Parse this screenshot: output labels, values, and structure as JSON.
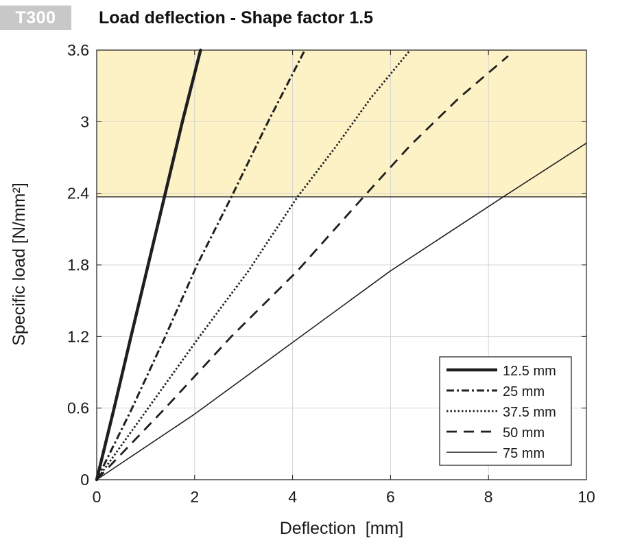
{
  "badge": "T300",
  "chart_data": {
    "type": "line",
    "title": "Load deflection - Shape factor 1.5",
    "xlabel": "Deflection  [mm]",
    "ylabel": "Specific load [N/mm²]",
    "xlim": [
      0,
      10
    ],
    "ylim": [
      0,
      3.6
    ],
    "x_ticks": [
      0,
      2,
      4,
      6,
      8,
      10
    ],
    "y_ticks": [
      0,
      0.6,
      1.2,
      1.8,
      2.4,
      3,
      3.6
    ],
    "x_tick_labels": [
      "0",
      "2",
      "4",
      "6",
      "8",
      "10"
    ],
    "y_tick_labels": [
      "0",
      "0.6",
      "1.2",
      "1.8",
      "2.4",
      "3",
      "3.6"
    ],
    "grid": true,
    "legend_position": "bottom-right",
    "highlight_band": {
      "y_from": 2.37,
      "y_to": 3.6,
      "color": "#fdf2c6"
    },
    "series": [
      {
        "name": "12.5 mm",
        "style": "solid-thick",
        "x": [
          0,
          0.35,
          0.7,
          1.05,
          1.4,
          1.75,
          2.12
        ],
        "y": [
          0,
          0.59,
          1.2,
          1.8,
          2.4,
          3.0,
          3.6
        ]
      },
      {
        "name": "25 mm",
        "style": "dashdot",
        "x": [
          0,
          0.7,
          1.4,
          2.05,
          2.75,
          3.5,
          4.25
        ],
        "y": [
          0,
          0.58,
          1.2,
          1.8,
          2.37,
          3.0,
          3.6
        ]
      },
      {
        "name": "37.5 mm",
        "style": "dotted",
        "x": [
          0,
          1.05,
          2.1,
          3.1,
          4.1,
          4.9,
          5.6,
          6.4
        ],
        "y": [
          0,
          0.6,
          1.2,
          1.75,
          2.37,
          2.8,
          3.2,
          3.6
        ]
      },
      {
        "name": "50 mm",
        "style": "dashed",
        "x": [
          0,
          1.4,
          2.75,
          4.1,
          5.45,
          6.4,
          7.4,
          8.4
        ],
        "y": [
          0,
          0.6,
          1.2,
          1.75,
          2.37,
          2.8,
          3.2,
          3.55
        ]
      },
      {
        "name": "75 mm",
        "style": "solid-thin",
        "x": [
          0,
          2.0,
          4.0,
          6.0,
          8.3,
          10.0
        ],
        "y": [
          0,
          0.55,
          1.15,
          1.75,
          2.37,
          2.82
        ]
      }
    ]
  }
}
